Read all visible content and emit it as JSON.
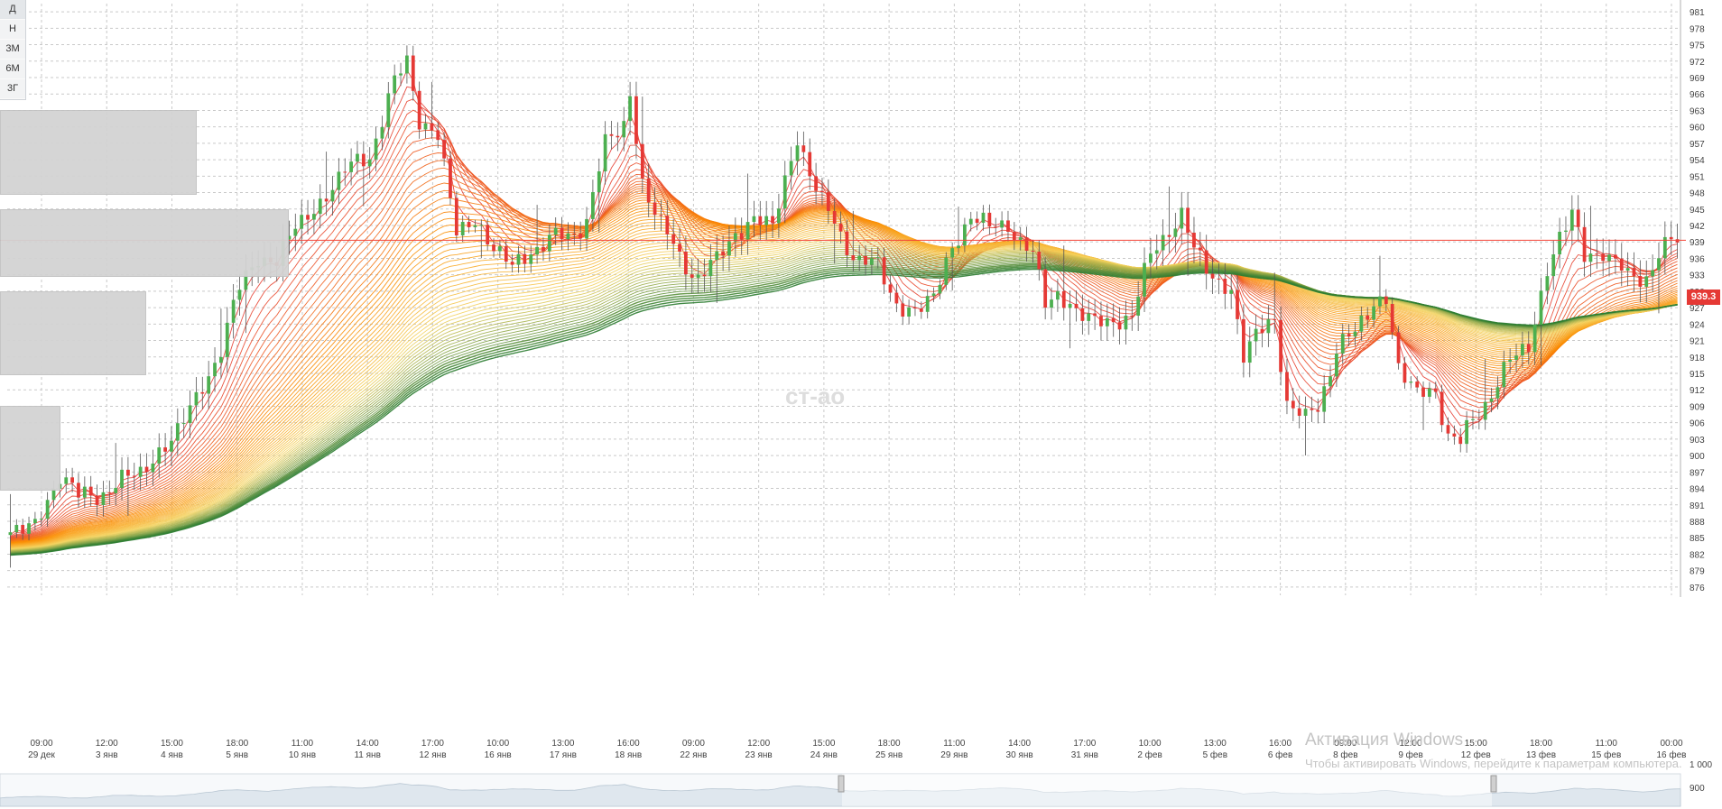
{
  "toolbar": {
    "timeframes": [
      "Д",
      "Н",
      "3М",
      "6М",
      "3Г"
    ]
  },
  "chart_data": {
    "type": "candlestick",
    "current_price": 939.3,
    "current_price_label": "939.3",
    "ylim": [
      874.5,
      982.5
    ],
    "y_ticks": [
      876,
      879,
      882,
      885,
      888,
      891,
      894,
      897,
      900,
      903,
      906,
      909,
      912,
      915,
      918,
      921,
      924,
      927,
      930,
      933,
      936,
      939,
      942,
      945,
      948,
      951,
      954,
      957,
      960,
      963,
      966,
      969,
      972,
      975,
      978,
      981
    ],
    "x_ticks": [
      {
        "time": "09:00",
        "date": "29 дек"
      },
      {
        "time": "12:00",
        "date": "3 янв"
      },
      {
        "time": "15:00",
        "date": "4 янв"
      },
      {
        "time": "18:00",
        "date": "5 янв"
      },
      {
        "time": "11:00",
        "date": "10 янв"
      },
      {
        "time": "14:00",
        "date": "11 янв"
      },
      {
        "time": "17:00",
        "date": "12 янв"
      },
      {
        "time": "10:00",
        "date": "16 янв"
      },
      {
        "time": "13:00",
        "date": "17 янв"
      },
      {
        "time": "16:00",
        "date": "18 янв"
      },
      {
        "time": "09:00",
        "date": "22 янв"
      },
      {
        "time": "12:00",
        "date": "23 янв"
      },
      {
        "time": "15:00",
        "date": "24 янв"
      },
      {
        "time": "18:00",
        "date": "25 янв"
      },
      {
        "time": "11:00",
        "date": "29 янв"
      },
      {
        "time": "14:00",
        "date": "30 янв"
      },
      {
        "time": "17:00",
        "date": "31 янв"
      },
      {
        "time": "10:00",
        "date": "2 фев"
      },
      {
        "time": "13:00",
        "date": "5 фев"
      },
      {
        "time": "16:00",
        "date": "6 фев"
      },
      {
        "time": "09:00",
        "date": "8 фев"
      },
      {
        "time": "12:00",
        "date": "9 фев"
      },
      {
        "time": "15:00",
        "date": "12 фев"
      },
      {
        "time": "18:00",
        "date": "13 фев"
      },
      {
        "time": "11:00",
        "date": "15 фев"
      },
      {
        "time": "00:00",
        "date": "16 фев"
      }
    ],
    "price_path": [
      [
        0,
        886
      ],
      [
        4,
        887
      ],
      [
        8,
        897
      ],
      [
        11,
        892
      ],
      [
        16,
        894
      ],
      [
        21,
        897
      ],
      [
        26,
        903
      ],
      [
        30,
        910
      ],
      [
        34,
        920
      ],
      [
        37,
        930
      ],
      [
        40,
        937
      ],
      [
        43,
        935
      ],
      [
        46,
        942
      ],
      [
        50,
        946
      ],
      [
        54,
        952
      ],
      [
        58,
        955
      ],
      [
        61,
        965
      ],
      [
        64,
        972
      ],
      [
        66,
        962
      ],
      [
        69,
        958
      ],
      [
        72,
        941
      ],
      [
        75,
        943
      ],
      [
        78,
        938
      ],
      [
        81,
        934
      ],
      [
        84,
        938
      ],
      [
        87,
        939
      ],
      [
        90,
        940
      ],
      [
        93,
        943
      ],
      [
        96,
        957
      ],
      [
        99,
        960
      ],
      [
        100,
        966
      ],
      [
        102,
        950
      ],
      [
        105,
        942
      ],
      [
        108,
        936
      ],
      [
        111,
        933
      ],
      [
        114,
        935
      ],
      [
        117,
        941
      ],
      [
        120,
        943
      ],
      [
        123,
        942
      ],
      [
        125,
        950
      ],
      [
        127,
        958
      ],
      [
        129,
        952
      ],
      [
        131,
        946
      ],
      [
        134,
        940
      ],
      [
        137,
        936
      ],
      [
        140,
        934
      ],
      [
        143,
        928
      ],
      [
        146,
        926
      ],
      [
        149,
        929
      ],
      [
        152,
        938
      ],
      [
        155,
        944
      ],
      [
        158,
        941
      ],
      [
        161,
        943
      ],
      [
        163,
        939
      ],
      [
        165,
        936
      ],
      [
        167,
        928
      ],
      [
        169,
        930
      ],
      [
        172,
        926
      ],
      [
        174,
        925
      ],
      [
        177,
        924
      ],
      [
        181,
        926
      ],
      [
        184,
        936
      ],
      [
        187,
        942
      ],
      [
        189,
        944
      ],
      [
        191,
        937
      ],
      [
        194,
        933
      ],
      [
        197,
        930
      ],
      [
        199,
        918
      ],
      [
        201,
        922
      ],
      [
        204,
        925
      ],
      [
        206,
        910
      ],
      [
        209,
        906
      ],
      [
        211,
        909
      ],
      [
        214,
        920
      ],
      [
        217,
        922
      ],
      [
        220,
        928
      ],
      [
        222,
        929
      ],
      [
        224,
        916
      ],
      [
        227,
        911
      ],
      [
        230,
        912
      ],
      [
        232,
        904
      ],
      [
        234,
        902
      ],
      [
        236,
        906
      ],
      [
        239,
        912
      ],
      [
        242,
        917
      ],
      [
        245,
        920
      ],
      [
        248,
        934
      ],
      [
        250,
        940
      ],
      [
        252,
        944
      ],
      [
        254,
        936
      ],
      [
        257,
        938
      ],
      [
        259,
        935
      ],
      [
        261,
        932
      ],
      [
        264,
        933
      ],
      [
        266,
        937
      ],
      [
        268,
        939
      ]
    ],
    "ribbon_count": 55,
    "colors": {
      "ma_fast": "#e53935",
      "ma_mid": "#fb8c00",
      "ma_slow_light": "#f4d35e",
      "ma_slow": "#2e7d32",
      "bull": "#4caf50",
      "bear": "#e53935",
      "grid": "#c9c9c9",
      "price_line": "#f44336"
    },
    "navigator_ticks": [
      "1 000",
      "900"
    ],
    "volume_profile": [
      {
        "price_low": 948,
        "price_high": 963,
        "relative_volume": 1.0
      },
      {
        "price_low": 933,
        "price_high": 945,
        "relative_volume": 1.47
      },
      {
        "price_low": 915,
        "price_high": 930,
        "relative_volume": 0.74
      },
      {
        "price_low": 894,
        "price_high": 909,
        "relative_volume": 0.3
      }
    ]
  },
  "watermark": {
    "site": "ст-ао",
    "activation_title": "Активация Windows",
    "activation_text": "Чтобы активировать Windows, перейдите к параметрам компьютера."
  }
}
